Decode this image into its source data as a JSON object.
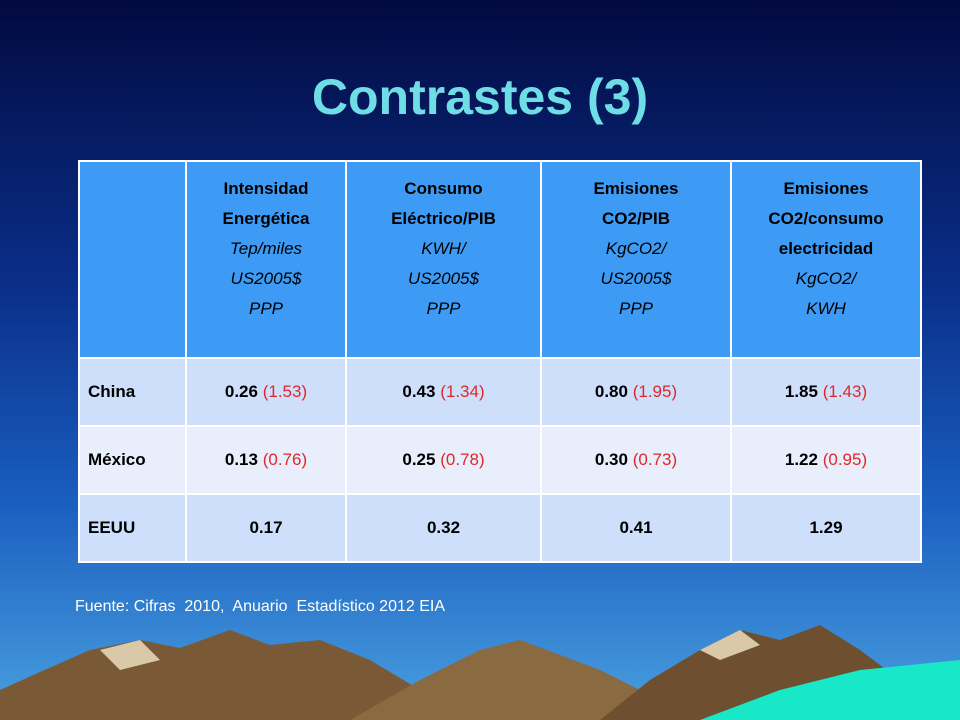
{
  "title": "Contrastes (3)",
  "table": {
    "headers": [
      {
        "bold": [
          "Intensidad",
          "Energética"
        ],
        "italic": [
          "Tep/miles",
          "US2005$",
          "PPP"
        ]
      },
      {
        "bold": [
          "Consumo",
          "Eléctrico/PIB"
        ],
        "italic": [
          "KWH/",
          "US2005$",
          "PPP"
        ]
      },
      {
        "bold": [
          "Emisiones",
          "CO2/PIB"
        ],
        "italic": [
          "KgCO2/",
          "US2005$",
          "PPP"
        ]
      },
      {
        "bold": [
          "Emisiones",
          "CO2/consumo",
          "electricidad"
        ],
        "italic": [
          "KgCO2/",
          "KWH"
        ]
      }
    ],
    "rows": [
      {
        "label": "China",
        "cells": [
          {
            "value": "0.26",
            "note": "(1.53)"
          },
          {
            "value": "0.43",
            "note": "(1.34)"
          },
          {
            "value": "0.80",
            "note": "(1.95)"
          },
          {
            "value": "1.85",
            "note": "(1.43)"
          }
        ]
      },
      {
        "label": "México",
        "cells": [
          {
            "value": "0.13",
            "note": "(0.76)"
          },
          {
            "value": "0.25",
            "note": "(0.78)"
          },
          {
            "value": "0.30",
            "note": "(0.73)"
          },
          {
            "value": "1.22",
            "note": "(0.95)"
          }
        ]
      },
      {
        "label": "EEUU",
        "cells": [
          {
            "value": "0.17"
          },
          {
            "value": "0.32"
          },
          {
            "value": "0.41"
          },
          {
            "value": "1.29"
          }
        ]
      }
    ]
  },
  "source": "Fuente: Cifras  2010,  Anuario  Estadístico 2012 EIA"
}
